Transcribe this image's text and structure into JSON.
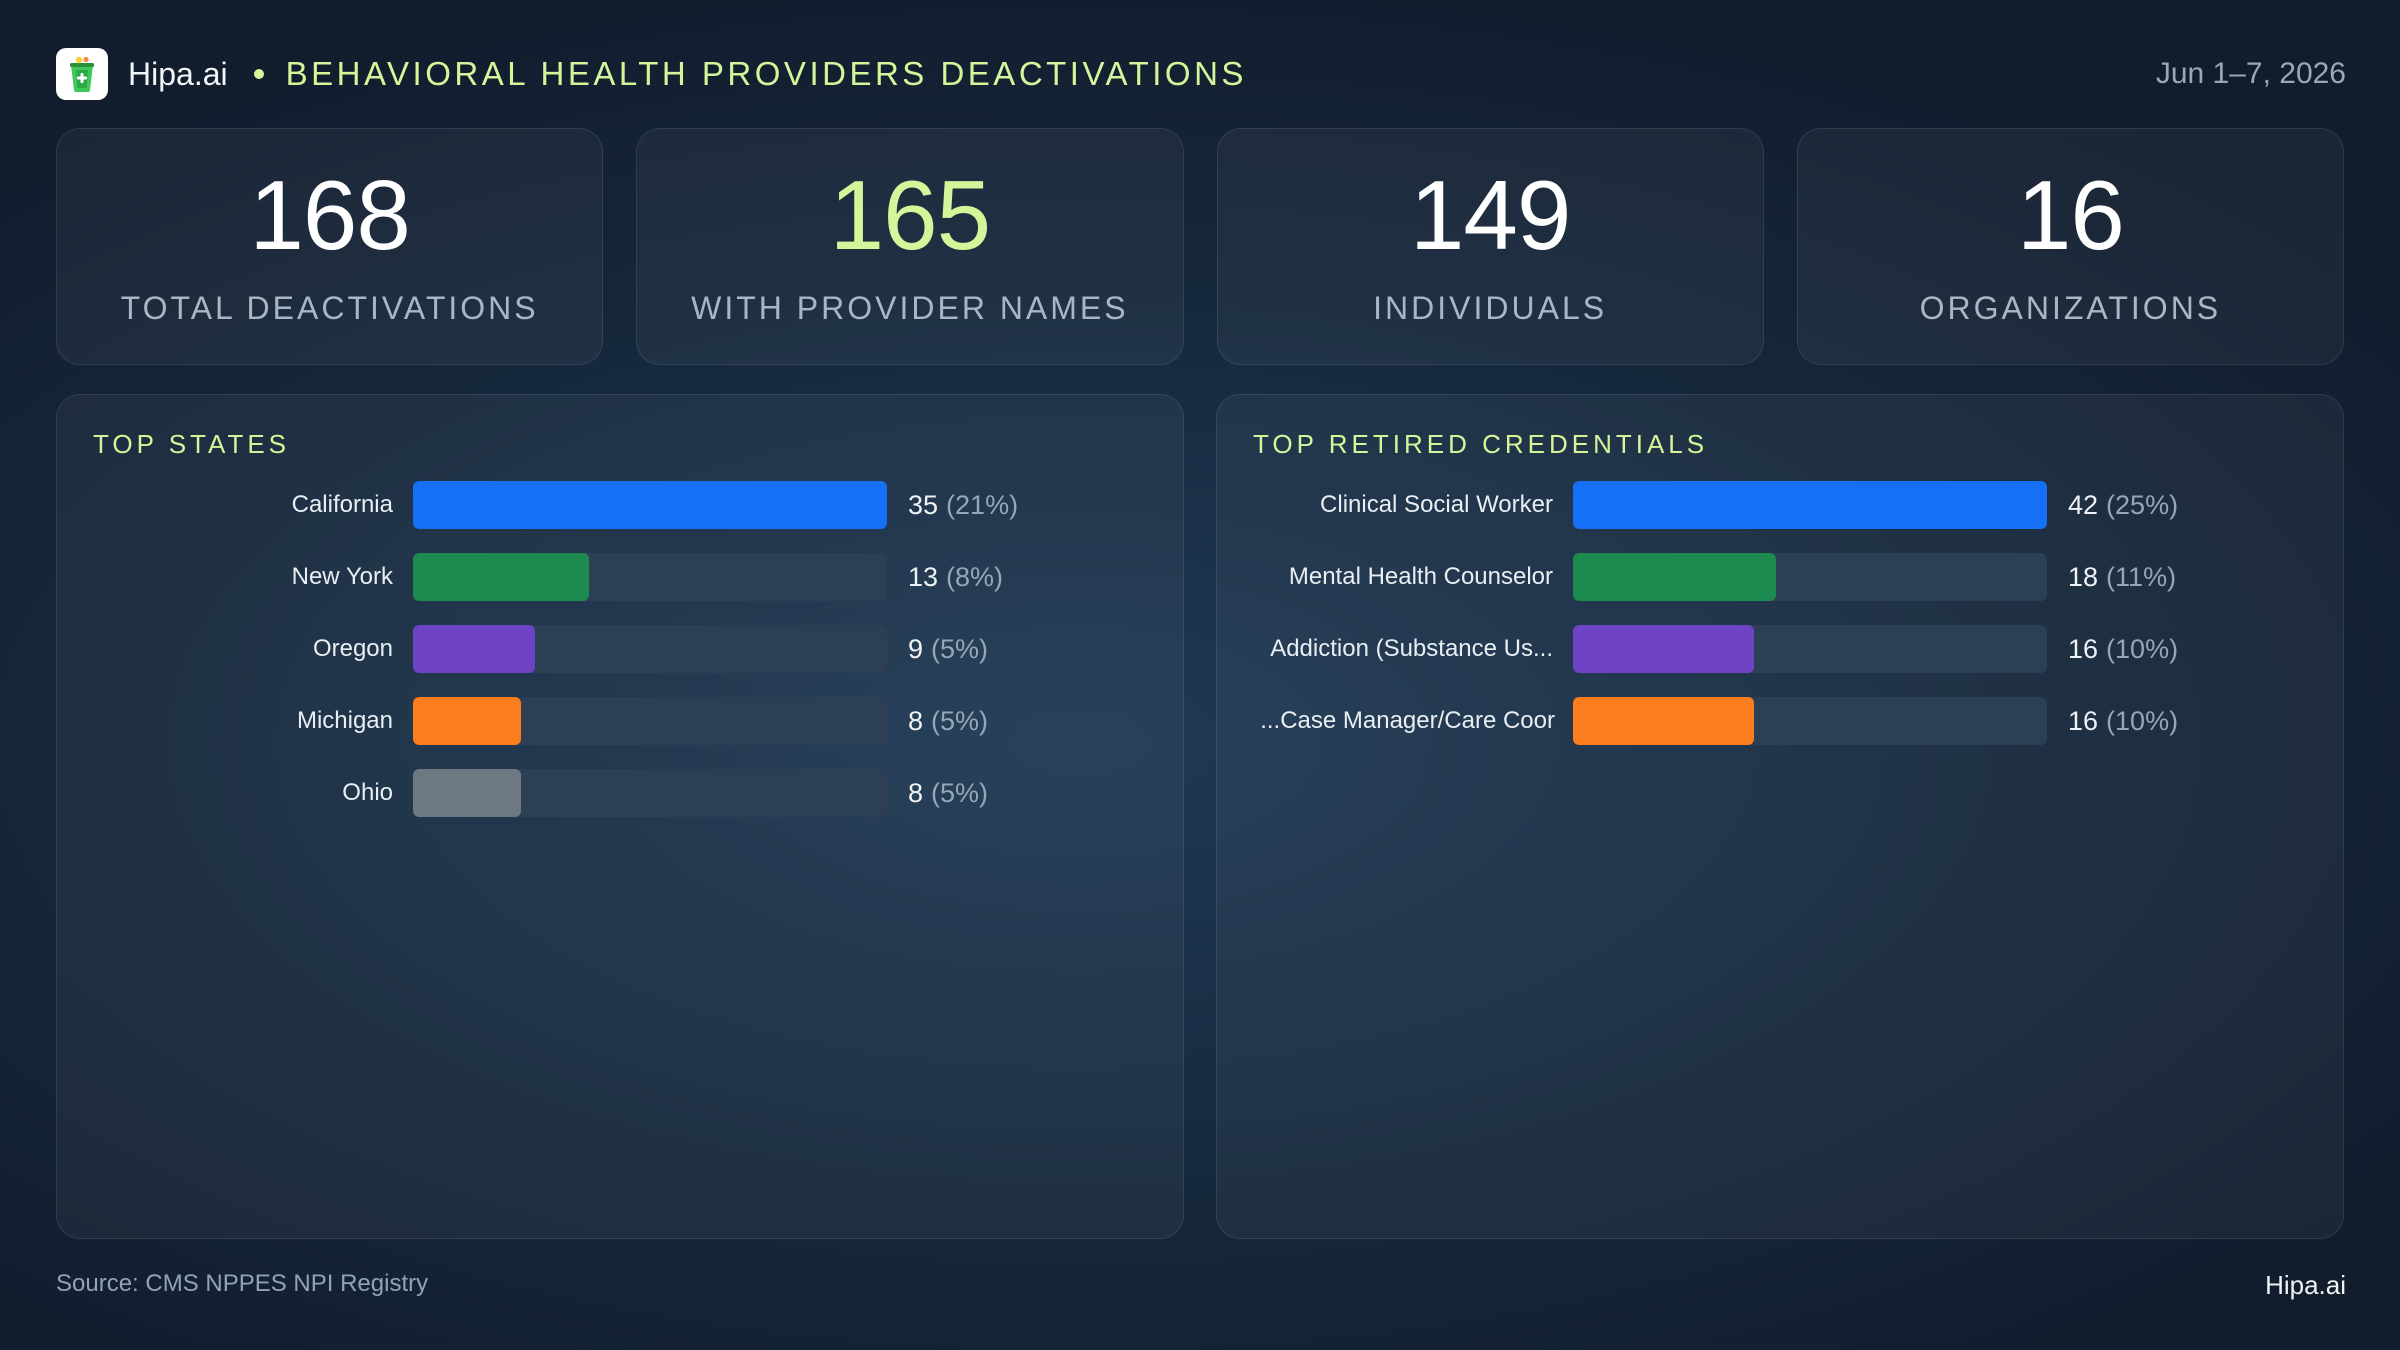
{
  "header": {
    "brand": "Hipa.ai",
    "title": "BEHAVIORAL HEALTH PROVIDERS DEACTIVATIONS",
    "date_range": "Jun 1–7, 2026"
  },
  "stats": [
    {
      "value": "168",
      "label": "TOTAL DEACTIVATIONS"
    },
    {
      "value": "165",
      "label": "WITH PROVIDER NAMES"
    },
    {
      "value": "149",
      "label": "INDIVIDUALS"
    },
    {
      "value": "16",
      "label": "ORGANIZATIONS"
    }
  ],
  "colors": {
    "accent": "#d4f59a",
    "blue": "#1570f6",
    "green": "#1d8a50",
    "purple": "#6e43c4",
    "orange": "#fb7d1d",
    "gray": "#6e7883",
    "track": "#2c3f54"
  },
  "chart_data": [
    {
      "type": "bar",
      "title": "TOP STATES",
      "orientation": "horizontal",
      "xlim": [
        0,
        35
      ],
      "categories": [
        "California",
        "New York",
        "Oregon",
        "Michigan",
        "Ohio"
      ],
      "values": [
        35,
        13,
        9,
        8,
        8
      ],
      "percent_labels": [
        "(21%)",
        "(8%)",
        "(5%)",
        "(5%)",
        "(5%)"
      ],
      "bar_colors": [
        "#1570f6",
        "#1d8a50",
        "#6e43c4",
        "#fb7d1d",
        "#6e7883"
      ]
    },
    {
      "type": "bar",
      "title": "TOP RETIRED CREDENTIALS",
      "orientation": "horizontal",
      "xlim": [
        0,
        42
      ],
      "categories": [
        "Clinical Social Worker",
        "Mental Health Counselor",
        "Addiction (Substance Us...",
        "Case Manager/Care Coor..."
      ],
      "values": [
        42,
        18,
        16,
        16
      ],
      "percent_labels": [
        "(25%)",
        "(11%)",
        "(10%)",
        "(10%)"
      ],
      "bar_colors": [
        "#1570f6",
        "#1d8a50",
        "#6e43c4",
        "#fb7d1d"
      ]
    }
  ],
  "footer": {
    "source": "Source: CMS NPPES NPI Registry",
    "brand": "Hipa.ai"
  }
}
